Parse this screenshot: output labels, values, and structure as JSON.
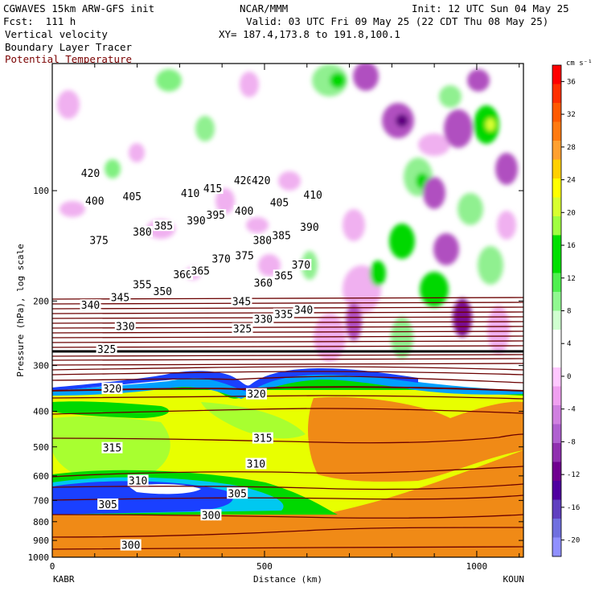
{
  "header": {
    "model": "CGWAVES 15km ARW-GFS init",
    "org": "NCAR/MMM",
    "init": "Init: 12 UTC Sun 04 May 25",
    "fcst": "Fcst:  111 h",
    "valid": "Valid: 03 UTC Fri 09 May 25 (22 CDT Thu 08 May 25)",
    "field1": "Vertical velocity",
    "field2": "Boundary Layer Tracer",
    "field3": "Potential Temperature",
    "xy": "XY= 187.4,173.8 to 191.8,100.1"
  },
  "colors": {
    "theta_line": "#6b0000",
    "field3_text": "#7a0000"
  },
  "chart_data": {
    "type": "heatmap",
    "xlabel": "Distance (km)",
    "ylabel": "Pressure (hPa), log scale",
    "x_ticks": [
      0,
      500,
      1000
    ],
    "xlim": [
      0,
      1110
    ],
    "y_ticks": [
      100,
      200,
      300,
      400,
      500,
      600,
      700,
      800,
      900,
      1000
    ],
    "y_scale": "log",
    "ylim": [
      1000,
      45
    ],
    "start_label": "KABR",
    "end_label": "KOUN",
    "colorbar": {
      "unit": "cm s⁻¹",
      "ticks": [
        36,
        32,
        28,
        24,
        20,
        16,
        12,
        8,
        4,
        0,
        -4,
        -8,
        -12,
        -16,
        -20
      ],
      "colors": [
        "#ff0000",
        "#ff3000",
        "#ff5a00",
        "#ff7a10",
        "#ffa030",
        "#ffd000",
        "#ffff00",
        "#d8ff30",
        "#a0ff40",
        "#00e000",
        "#00e000",
        "#50f050",
        "#90f890",
        "#d0ffd0",
        "#ffffff",
        "#ffffff",
        "#ffc8ff",
        "#f0a0f0",
        "#d080e0",
        "#b060d0",
        "#9030b0",
        "#700090",
        "#5000a0",
        "#6040c0",
        "#7070e0",
        "#9090ff"
      ]
    },
    "theta_labels": [
      {
        "v": "420",
        "x": 90,
        "p": 90
      },
      {
        "v": "400",
        "x": 100,
        "p": 107
      },
      {
        "v": "405",
        "x": 188,
        "p": 104
      },
      {
        "v": "410",
        "x": 325,
        "p": 102
      },
      {
        "v": "415",
        "x": 378,
        "p": 99
      },
      {
        "v": "420",
        "x": 450,
        "p": 94
      },
      {
        "v": "420",
        "x": 492,
        "p": 94
      },
      {
        "v": "400",
        "x": 452,
        "p": 114
      },
      {
        "v": "405",
        "x": 535,
        "p": 108
      },
      {
        "v": "410",
        "x": 614,
        "p": 103
      },
      {
        "v": "375",
        "x": 110,
        "p": 137
      },
      {
        "v": "380",
        "x": 212,
        "p": 130
      },
      {
        "v": "385",
        "x": 262,
        "p": 125
      },
      {
        "v": "390",
        "x": 339,
        "p": 121
      },
      {
        "v": "395",
        "x": 385,
        "p": 117
      },
      {
        "v": "380",
        "x": 495,
        "p": 137
      },
      {
        "v": "385",
        "x": 540,
        "p": 133
      },
      {
        "v": "390",
        "x": 606,
        "p": 126
      },
      {
        "v": "370",
        "x": 398,
        "p": 154
      },
      {
        "v": "375",
        "x": 453,
        "p": 151
      },
      {
        "v": "370",
        "x": 586,
        "p": 160
      },
      {
        "v": "340",
        "x": 90,
        "p": 206
      },
      {
        "v": "345",
        "x": 160,
        "p": 196
      },
      {
        "v": "355",
        "x": 212,
        "p": 181
      },
      {
        "v": "350",
        "x": 260,
        "p": 189
      },
      {
        "v": "360",
        "x": 307,
        "p": 170
      },
      {
        "v": "365",
        "x": 349,
        "p": 166
      },
      {
        "v": "360",
        "x": 497,
        "p": 179
      },
      {
        "v": "365",
        "x": 545,
        "p": 171
      },
      {
        "v": "340",
        "x": 592,
        "p": 212
      },
      {
        "v": "345",
        "x": 446,
        "p": 201
      },
      {
        "v": "330",
        "x": 497,
        "p": 225
      },
      {
        "v": "335",
        "x": 545,
        "p": 218
      },
      {
        "v": "325",
        "x": 448,
        "p": 239
      },
      {
        "v": "330",
        "x": 172,
        "p": 235
      },
      {
        "v": "325",
        "x": 128,
        "p": 272
      },
      {
        "v": "320",
        "x": 141,
        "p": 348
      },
      {
        "v": "320",
        "x": 481,
        "p": 360
      },
      {
        "v": "315",
        "x": 496,
        "p": 475
      },
      {
        "v": "315",
        "x": 141,
        "p": 505
      },
      {
        "v": "310",
        "x": 480,
        "p": 558
      },
      {
        "v": "310",
        "x": 202,
        "p": 620
      },
      {
        "v": "305",
        "x": 436,
        "p": 672
      },
      {
        "v": "305",
        "x": 131,
        "p": 720
      },
      {
        "v": "300",
        "x": 374,
        "p": 770
      },
      {
        "v": "300",
        "x": 185,
        "p": 930
      }
    ]
  }
}
